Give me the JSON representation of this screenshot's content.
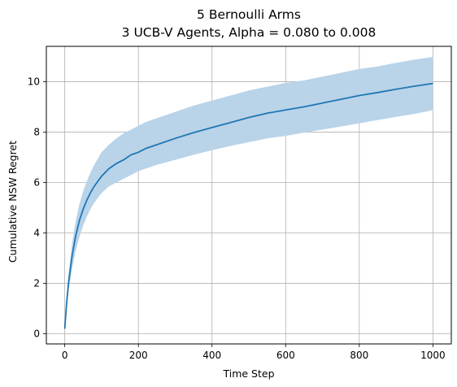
{
  "chart_data": {
    "type": "area",
    "title": "5 Bernoulli Arms",
    "subtitle": "3 UCB-V Agents, Alpha = 0.080 to 0.008",
    "xlabel": "Time Step",
    "ylabel": "Cumulative NSW Regret",
    "xlim": [
      -50,
      1050
    ],
    "ylim": [
      -0.4,
      11.4
    ],
    "xticks": [
      0,
      200,
      400,
      600,
      800,
      1000
    ],
    "yticks": [
      0,
      2,
      4,
      6,
      8,
      10
    ],
    "grid": true,
    "colors": {
      "line": "#1f77b4",
      "band": "#b9d3e9",
      "grid": "#b0b0b0"
    },
    "series": [
      {
        "x": [
          0,
          5,
          10,
          20,
          30,
          40,
          50,
          60,
          70,
          80,
          90,
          100,
          120,
          140,
          160,
          180,
          200,
          220,
          250,
          300,
          350,
          400,
          450,
          500,
          550,
          600,
          650,
          700,
          750,
          800,
          850,
          900,
          950,
          1000
        ],
        "y": [
          0.2,
          1.2,
          2.0,
          3.1,
          3.9,
          4.5,
          4.95,
          5.3,
          5.6,
          5.85,
          6.05,
          6.25,
          6.55,
          6.75,
          6.9,
          7.1,
          7.2,
          7.35,
          7.5,
          7.75,
          7.98,
          8.18,
          8.38,
          8.58,
          8.75,
          8.88,
          9.0,
          9.15,
          9.3,
          9.45,
          9.57,
          9.7,
          9.82,
          9.93
        ],
        "lower": [
          0.15,
          1.0,
          1.7,
          2.6,
          3.3,
          3.85,
          4.3,
          4.65,
          4.95,
          5.2,
          5.4,
          5.58,
          5.85,
          6.0,
          6.15,
          6.3,
          6.45,
          6.55,
          6.7,
          6.9,
          7.1,
          7.28,
          7.45,
          7.6,
          7.75,
          7.85,
          7.98,
          8.1,
          8.22,
          8.35,
          8.48,
          8.6,
          8.72,
          8.87
        ],
        "upper": [
          0.25,
          1.5,
          2.35,
          3.6,
          4.5,
          5.15,
          5.65,
          6.05,
          6.4,
          6.7,
          6.95,
          7.2,
          7.5,
          7.75,
          7.95,
          8.1,
          8.25,
          8.4,
          8.55,
          8.8,
          9.05,
          9.25,
          9.45,
          9.65,
          9.8,
          9.95,
          10.05,
          10.2,
          10.35,
          10.5,
          10.6,
          10.75,
          10.87,
          10.98
        ]
      }
    ]
  }
}
